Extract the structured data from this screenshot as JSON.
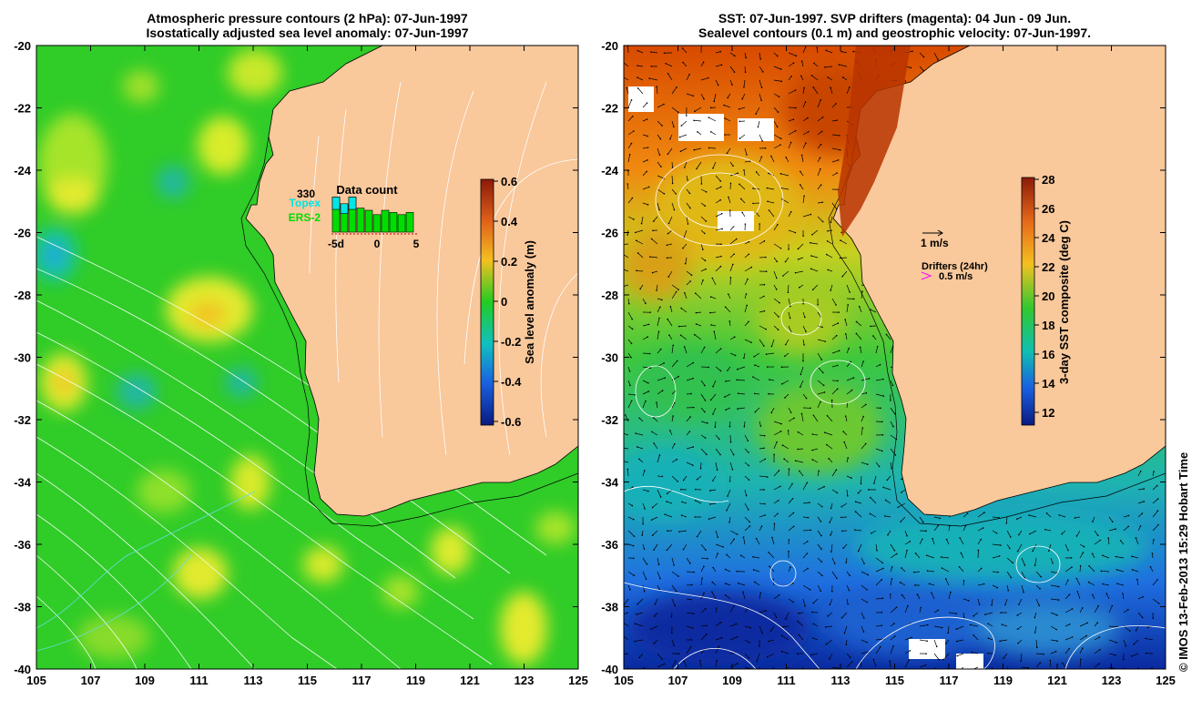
{
  "left_map": {
    "title_line1": "Atmospheric pressure contours (2 hPa): 07-Jun-1997",
    "title_line2": "Isostatically adjusted sea level anomaly: 07-Jun-1997",
    "lon_ticks": [
      "105",
      "107",
      "109",
      "111",
      "113",
      "115",
      "117",
      "119",
      "121",
      "123",
      "125"
    ],
    "lat_ticks": [
      "-20",
      "-22",
      "-24",
      "-26",
      "-28",
      "-30",
      "-32",
      "-34",
      "-36",
      "-38",
      "-40"
    ],
    "colorbar": {
      "label": "Sea level anomaly (m)",
      "ticks": [
        "0.6",
        "0.4",
        "0.2",
        "0",
        "-0.2",
        "-0.4",
        "-0.6"
      ],
      "range": [
        -0.6,
        0.6
      ]
    },
    "data_count": {
      "title": "Data count",
      "count_label": "330",
      "topex_label": "Topex",
      "ers_label": "ERS-2",
      "axis_labels": [
        "-5d",
        "0",
        "5"
      ],
      "topex_color": "#00e5e5",
      "ers_color": "#00dd00",
      "bar_totals": [
        3.2,
        2.6,
        3.2,
        2.2,
        2.0,
        1.6,
        2.0,
        1.8,
        1.6,
        1.8
      ]
    }
  },
  "right_map": {
    "title_line1": "SST: 07-Jun-1997. SVP drifters (magenta): 04 Jun - 09 Jun.",
    "title_line2": "Sealevel contours (0.1 m) and geostrophic velocity: 07-Jun-1997.",
    "lon_ticks": [
      "105",
      "107",
      "109",
      "111",
      "113",
      "115",
      "117",
      "119",
      "121",
      "123",
      "125"
    ],
    "lat_ticks": [
      "-20",
      "-22",
      "-24",
      "-26",
      "-28",
      "-30",
      "-32",
      "-34",
      "-36",
      "-38",
      "-40"
    ],
    "colorbar": {
      "label": "3-day SST composite (deg C)",
      "ticks": [
        "28",
        "26",
        "24",
        "22",
        "20",
        "18",
        "16",
        "14",
        "12"
      ],
      "range": [
        11,
        28
      ]
    },
    "velocity_legend": "1 m/s",
    "drifters_legend": "Drifters (24hr)",
    "drifter_speed_legend": "0.5 m/s",
    "drifter_color": "#ff00ff"
  },
  "credit": "© IMOS 13-Feb-2013 15:29 Hobart Time",
  "colors": {
    "land": "#f9c89b",
    "coast": "#000000",
    "contour": "#ffffff"
  }
}
